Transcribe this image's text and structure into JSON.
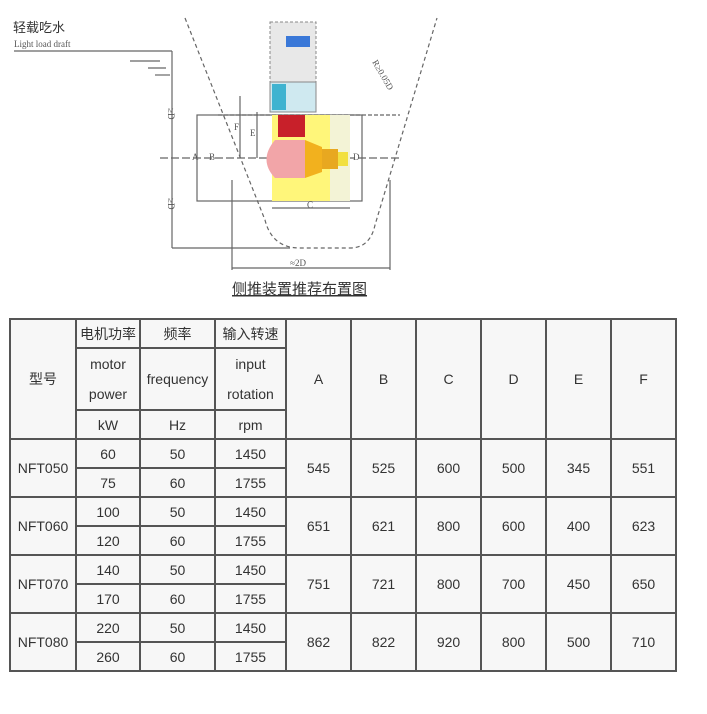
{
  "diagram": {
    "draft_cn": "轻载吃水",
    "draft_en": "Light load draft",
    "min_depth_top": "≥D",
    "min_depth_bottom": "≥D",
    "radius": "R≥0.05D",
    "width": "≈2D",
    "dims": [
      "A",
      "B",
      "C",
      "D",
      "E",
      "F"
    ],
    "caption": "侧推装置推荐布置图",
    "colors": {
      "motor": "#3a78d8",
      "tunnel": "#fff67a",
      "gearbox": "#c8202a",
      "hub": "#f2b11e"
    }
  },
  "table": {
    "header": {
      "model": "型号",
      "power_cn": "电机功率",
      "power_en_1": "motor",
      "power_en_2": "power",
      "power_unit": "kW",
      "freq_cn": "频率",
      "freq_en": "frequency",
      "freq_unit": "Hz",
      "speed_cn": "输入转速",
      "speed_en_1": "input",
      "speed_en_2": "rotation",
      "speed_unit": "rpm",
      "dims": [
        "A",
        "B",
        "C",
        "D",
        "E",
        "F"
      ]
    },
    "models": [
      {
        "name": "NFT050",
        "rows": [
          [
            "60",
            "50",
            "1450"
          ],
          [
            "75",
            "60",
            "1755"
          ]
        ],
        "dims": [
          "545",
          "525",
          "600",
          "500",
          "345",
          "551"
        ]
      },
      {
        "name": "NFT060",
        "rows": [
          [
            "100",
            "50",
            "1450"
          ],
          [
            "120",
            "60",
            "1755"
          ]
        ],
        "dims": [
          "651",
          "621",
          "800",
          "600",
          "400",
          "623"
        ]
      },
      {
        "name": "NFT070",
        "rows": [
          [
            "140",
            "50",
            "1450"
          ],
          [
            "170",
            "60",
            "1755"
          ]
        ],
        "dims": [
          "751",
          "721",
          "800",
          "700",
          "450",
          "650"
        ]
      },
      {
        "name": "NFT080",
        "rows": [
          [
            "220",
            "50",
            "1450"
          ],
          [
            "260",
            "60",
            "1755"
          ]
        ],
        "dims": [
          "862",
          "822",
          "920",
          "800",
          "500",
          "710"
        ]
      }
    ]
  }
}
